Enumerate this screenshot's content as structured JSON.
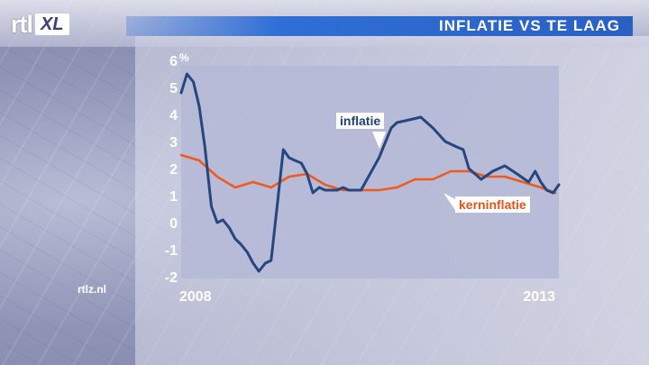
{
  "header": {
    "logo_text": "rtl",
    "logo_badge": "XL",
    "title": "INFLATIE VS TE LAAG"
  },
  "source": "rtlz.nl",
  "colors": {
    "inflatie": "#25467f",
    "kerninflatie": "#f05a1e",
    "title_bar": "#2a60c4"
  },
  "chart_data": {
    "type": "line",
    "y_unit": "%",
    "y_ticks": [
      "6",
      "5",
      "4",
      "3",
      "2",
      "1",
      "0",
      "-1",
      "-2"
    ],
    "ylim": [
      -2,
      6
    ],
    "x_tick_labels": [
      "2008",
      "2013"
    ],
    "xlim": [
      2008.0,
      2013.25
    ],
    "grid": false,
    "series": [
      {
        "name": "inflatie",
        "x": [
          2008.0,
          2008.08,
          2008.17,
          2008.25,
          2008.33,
          2008.42,
          2008.5,
          2008.58,
          2008.67,
          2008.75,
          2008.83,
          2008.92,
          2009.0,
          2009.08,
          2009.17,
          2009.25,
          2009.33,
          2009.42,
          2009.5,
          2009.58,
          2009.67,
          2009.75,
          2009.83,
          2009.92,
          2010.0,
          2010.08,
          2010.17,
          2010.25,
          2010.33,
          2010.5,
          2010.75,
          2010.92,
          2011.0,
          2011.17,
          2011.33,
          2011.5,
          2011.67,
          2011.83,
          2011.92,
          2012.0,
          2012.17,
          2012.33,
          2012.5,
          2012.67,
          2012.83,
          2012.92,
          2013.0,
          2013.08,
          2013.17,
          2013.25
        ],
        "values": [
          4.8,
          5.5,
          5.2,
          4.3,
          2.8,
          0.6,
          0.0,
          0.1,
          -0.2,
          -0.6,
          -0.8,
          -1.1,
          -1.5,
          -1.8,
          -1.5,
          -1.4,
          0.5,
          2.7,
          2.4,
          2.3,
          2.2,
          1.8,
          1.1,
          1.3,
          1.2,
          1.2,
          1.2,
          1.3,
          1.2,
          1.2,
          2.4,
          3.5,
          3.7,
          3.8,
          3.9,
          3.5,
          3.0,
          2.8,
          2.7,
          2.0,
          1.6,
          1.9,
          2.1,
          1.8,
          1.5,
          1.9,
          1.5,
          1.2,
          1.1,
          1.4
        ]
      },
      {
        "name": "kerninflatie",
        "x": [
          2008.0,
          2008.25,
          2008.5,
          2008.75,
          2009.0,
          2009.25,
          2009.5,
          2009.75,
          2010.0,
          2010.25,
          2010.5,
          2010.75,
          2011.0,
          2011.25,
          2011.5,
          2011.75,
          2012.0,
          2012.25,
          2012.5,
          2012.75,
          2013.0,
          2013.2
        ],
        "values": [
          2.5,
          2.3,
          1.7,
          1.3,
          1.5,
          1.3,
          1.7,
          1.8,
          1.4,
          1.2,
          1.2,
          1.2,
          1.3,
          1.6,
          1.6,
          1.9,
          1.9,
          1.7,
          1.7,
          1.5,
          1.3,
          1.1
        ]
      }
    ]
  }
}
